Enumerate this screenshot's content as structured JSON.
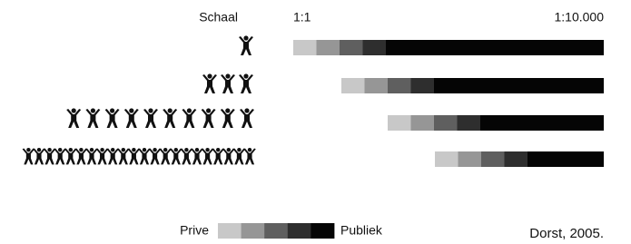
{
  "header": {
    "scale_label": "Schaal",
    "scale_min": "1:1",
    "scale_max": "1:10.000"
  },
  "legend": {
    "left": "Prive",
    "right": "Publiek"
  },
  "citation": "Dorst, 2005."
}
